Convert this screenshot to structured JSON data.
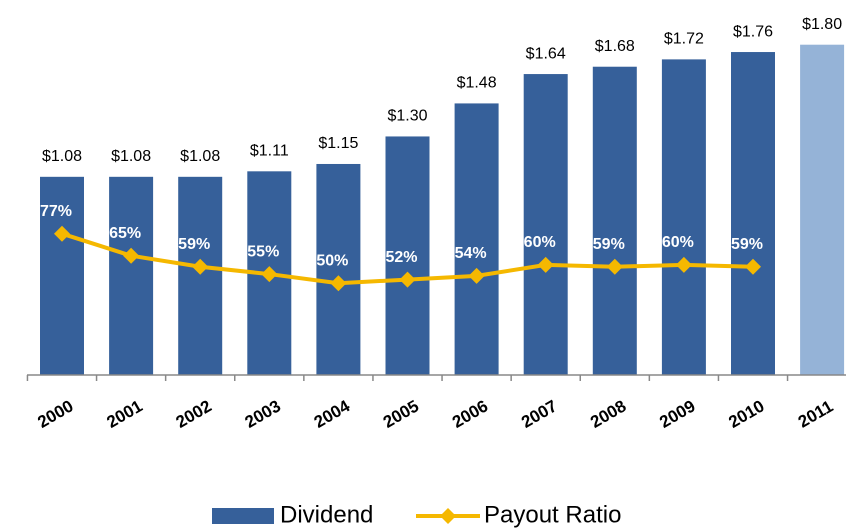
{
  "chart_data": {
    "type": "bar_line",
    "categories": [
      "2000",
      "2001",
      "2002",
      "2003",
      "2004",
      "2005",
      "2006",
      "2007",
      "2008",
      "2009",
      "2010",
      "2011"
    ],
    "series": [
      {
        "name": "Dividend",
        "type": "bar",
        "axis": "y",
        "color": "#36609a",
        "colors": [
          "#36609a",
          "#36609a",
          "#36609a",
          "#36609a",
          "#36609a",
          "#36609a",
          "#36609a",
          "#36609a",
          "#36609a",
          "#36609a",
          "#36609a",
          "#95b3d7"
        ],
        "values": [
          1.08,
          1.08,
          1.08,
          1.11,
          1.15,
          1.3,
          1.48,
          1.64,
          1.68,
          1.72,
          1.76,
          1.8
        ],
        "value_labels": [
          "$1.08",
          "$1.08",
          "$1.08",
          "$1.11",
          "$1.15",
          "$1.30",
          "$1.48",
          "$1.64",
          "$1.68",
          "$1.72",
          "$1.76",
          "$1.80"
        ]
      },
      {
        "name": "Payout Ratio",
        "type": "line",
        "axis": "y2",
        "color": "#f5b800",
        "values": [
          77,
          65,
          59,
          55,
          50,
          52,
          54,
          60,
          59,
          60,
          59,
          null
        ],
        "value_labels": [
          "77%",
          "65%",
          "59%",
          "55%",
          "50%",
          "52%",
          "54%",
          "60%",
          "59%",
          "60%",
          "59%",
          null
        ]
      }
    ],
    "ylim": [
      0,
      2.0
    ],
    "y2lim": [
      0,
      200
    ]
  }
}
